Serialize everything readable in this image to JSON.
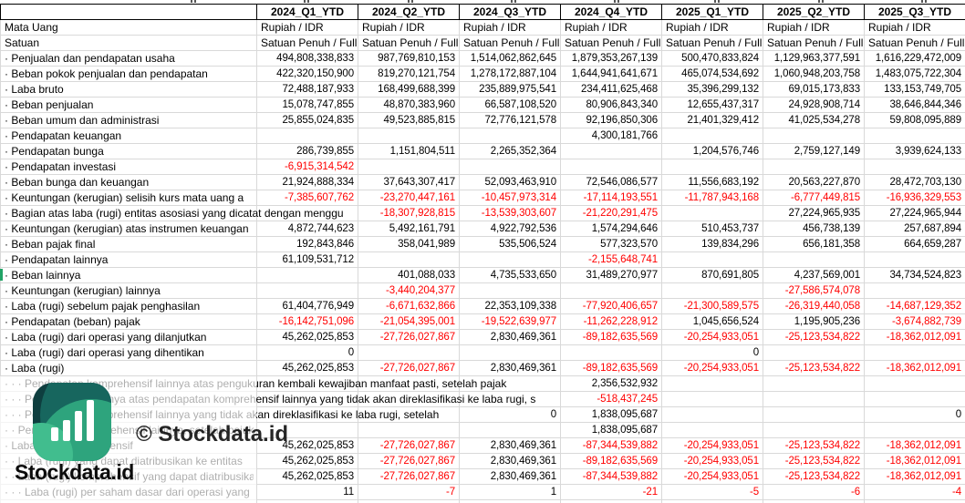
{
  "watermark": {
    "brand": "Stockdata.id",
    "copyright": "© Stockdata.id",
    "logo_icon": "stockdata-bar-chart-logo"
  },
  "colors": {
    "negative_value": "#ff0000",
    "positive_value": "#000000",
    "gridline": "#d9d9d9",
    "header_border": "#000000",
    "selection_green": "#21a366",
    "logo_dark_teal": "#0e3e3f",
    "logo_teal": "#17665e",
    "logo_green": "#2ea47d",
    "logo_light_green": "#41bd8e"
  },
  "table": {
    "corner_label": "",
    "columns": [
      "2024_Q1_YTD",
      "2024_Q2_YTD",
      "2024_Q3_YTD",
      "2024_Q4_YTD",
      "2025_Q1_YTD",
      "2025_Q2_YTD",
      "2025_Q3_YTD"
    ],
    "meta_rows": [
      {
        "label": "Mata Uang",
        "values": [
          "Rupiah / IDR",
          "Rupiah / IDR",
          "Rupiah / IDR",
          "Rupiah / IDR",
          "Rupiah / IDR",
          "Rupiah / IDR",
          "Rupiah / IDR"
        ]
      },
      {
        "label": "Satuan",
        "values": [
          "Satuan Penuh / Full",
          "Satuan Penuh / Full",
          "Satuan Penuh / Full",
          "Satuan Penuh / Full",
          "Satuan Penuh / Full",
          "Satuan Penuh / Full",
          "Satuan Penuh / Full A"
        ]
      }
    ],
    "rows": [
      {
        "label": "· Penjualan dan pendapatan usaha",
        "values": [
          "494,808,338,833",
          "987,769,810,153",
          "1,514,062,862,645",
          "1,879,353,267,139",
          "500,470,833,824",
          "1,129,963,377,591",
          "1,616,229,472,009"
        ]
      },
      {
        "label": "· Beban pokok penjualan dan pendapatan",
        "values": [
          "422,320,150,900",
          "819,270,121,754",
          "1,278,172,887,104",
          "1,644,941,641,671",
          "465,074,534,692",
          "1,060,948,203,758",
          "1,483,075,722,304"
        ]
      },
      {
        "label": "· Laba bruto",
        "values": [
          "72,488,187,933",
          "168,499,688,399",
          "235,889,975,541",
          "234,411,625,468",
          "35,396,299,132",
          "69,015,173,833",
          "133,153,749,705"
        ]
      },
      {
        "label": "· Beban penjualan",
        "values": [
          "15,078,747,855",
          "48,870,383,960",
          "66,587,108,520",
          "80,906,843,340",
          "12,655,437,317",
          "24,928,908,714",
          "38,646,844,346"
        ]
      },
      {
        "label": "· Beban umum dan administrasi",
        "values": [
          "25,855,024,835",
          "49,523,885,815",
          "72,776,121,578",
          "92,196,850,306",
          "21,401,329,412",
          "41,025,534,278",
          "59,808,095,889"
        ]
      },
      {
        "label": "· Pendapatan keuangan",
        "values": [
          "",
          "",
          "",
          "4,300,181,766",
          "",
          "",
          ""
        ]
      },
      {
        "label": "· Pendapatan bunga",
        "values": [
          "286,739,855",
          "1,151,804,511",
          "2,265,352,364",
          "",
          "1,204,576,746",
          "2,759,127,149",
          "3,939,624,133"
        ]
      },
      {
        "label": "· Pendapatan investasi",
        "values": [
          "-6,915,314,542",
          "",
          "",
          "",
          "",
          "",
          ""
        ]
      },
      {
        "label": "· Beban bunga dan keuangan",
        "values": [
          "21,924,888,334",
          "37,643,307,417",
          "52,093,463,910",
          "72,546,086,577",
          "11,556,683,192",
          "20,563,227,870",
          "28,472,703,130"
        ]
      },
      {
        "label": "· Keuntungan (kerugian) selisih kurs mata uang a",
        "values": [
          "-7,385,607,762",
          "-23,270,447,161",
          "-10,457,973,314",
          "-17,114,193,551",
          "-11,787,943,168",
          "-6,777,449,815",
          "-16,936,329,553"
        ]
      },
      {
        "label": "· Bagian atas laba (rugi) entitas asosiasi yang dicatat dengan menggu",
        "clip": 388,
        "values": [
          "",
          "-18,307,928,815",
          "-13,539,303,607",
          "-21,220,291,475",
          "",
          "27,224,965,935",
          "27,224,965,944"
        ]
      },
      {
        "label": "· Keuntungan (kerugian) atas instrumen keuangan",
        "values": [
          "4,872,744,623",
          "5,492,161,791",
          "4,922,792,536",
          "1,574,294,646",
          "510,453,737",
          "456,738,139",
          "257,687,894"
        ]
      },
      {
        "label": "· Beban pajak final",
        "values": [
          "192,843,846",
          "358,041,989",
          "535,506,524",
          "577,323,570",
          "139,834,296",
          "656,181,358",
          "664,659,287"
        ]
      },
      {
        "label": "· Pendapatan lainnya",
        "values": [
          "61,109,531,712",
          "",
          "",
          "-2,155,648,741",
          "",
          "",
          ""
        ]
      },
      {
        "label": "· Beban lainnya",
        "selected": true,
        "values": [
          "",
          "401,088,033",
          "4,735,533,650",
          "31,489,270,977",
          "870,691,805",
          "4,237,569,001",
          "34,734,524,823"
        ]
      },
      {
        "label": "· Keuntungan (kerugian) lainnya",
        "values": [
          "",
          "-3,440,204,377",
          "",
          "",
          "",
          "-27,586,574,078",
          ""
        ]
      },
      {
        "label": "· Laba (rugi) sebelum pajak penghasilan",
        "values": [
          "61,404,776,949",
          "-6,671,632,866",
          "22,353,109,338",
          "-77,920,406,657",
          "-21,300,589,575",
          "-26,319,440,058",
          "-14,687,129,352"
        ]
      },
      {
        "label": "· Pendapatan (beban) pajak",
        "values": [
          "-16,142,751,096",
          "-21,054,395,001",
          "-19,522,639,977",
          "-11,262,228,912",
          "1,045,656,524",
          "1,195,905,236",
          "-3,674,882,739"
        ]
      },
      {
        "label": "· Laba (rugi) dari operasi yang dilanjutkan",
        "values": [
          "45,262,025,853",
          "-27,726,027,867",
          "2,830,469,361",
          "-89,182,635,569",
          "-20,254,933,051",
          "-25,123,534,822",
          "-18,362,012,091"
        ]
      },
      {
        "label": "· Laba (rugi) dari operasi yang dihentikan",
        "values": [
          "0",
          "",
          "",
          "",
          "0",
          "",
          ""
        ]
      },
      {
        "label": "· Laba (rugi)",
        "values": [
          "45,262,025,853",
          "-27,726,027,867",
          "2,830,469,361",
          "-89,182,635,569",
          "-20,254,933,051",
          "-25,123,534,822",
          "-18,362,012,091"
        ]
      },
      {
        "label": "· · · Pendapatan komprehensif lainnya atas pengukuran kembali kewajiban manfaat pasti, setelah pajak",
        "clip": 714,
        "values": [
          "",
          "",
          "",
          "2,356,532,932",
          "",
          "",
          ""
        ]
      },
      {
        "label": "· · · Penyesuaian lainnya atas pendapatan komprehensif lainnya yang tidak akan direklasifikasi ke laba rugi, s",
        "clip": 610,
        "values": [
          "",
          "",
          "",
          "-518,437,245",
          "",
          "",
          ""
        ]
      },
      {
        "label": "· · · Pendapatan komprehensif lainnya yang tidak akan direklasifikasi ke laba rugi, setelah",
        "clip": 499,
        "values": [
          "",
          "",
          "0",
          "1,838,095,687",
          "",
          "",
          "0"
        ]
      },
      {
        "label": "· · Pendapatan komprehensif lainnya, setelah pajak",
        "clip": 330,
        "values": [
          "",
          "",
          "",
          "1,838,095,687",
          "",
          "",
          ""
        ]
      },
      {
        "label": "· Laba (rugi) komprehensif",
        "values": [
          "45,262,025,853",
          "-27,726,027,867",
          "2,830,469,361",
          "-87,344,539,882",
          "-20,254,933,051",
          "-25,123,534,822",
          "-18,362,012,091"
        ]
      },
      {
        "label": "· · Laba (rugi) yang dapat diatribusikan ke entitas",
        "values": [
          "45,262,025,853",
          "-27,726,027,867",
          "2,830,469,361",
          "-89,182,635,569",
          "-20,254,933,051",
          "-25,123,534,822",
          "-18,362,012,091"
        ]
      },
      {
        "label": "· · Laba (rugi) komprehensif yang dapat diatribusika",
        "values": [
          "45,262,025,853",
          "-27,726,027,867",
          "2,830,469,361",
          "-87,344,539,882",
          "-20,254,933,051",
          "-25,123,534,822",
          "-18,362,012,091"
        ]
      },
      {
        "label": "· · · Laba (rugi) per saham dasar dari operasi yang",
        "values": [
          "11",
          "-7",
          "1",
          "-21",
          "-5",
          "-6",
          "-4"
        ]
      }
    ]
  }
}
